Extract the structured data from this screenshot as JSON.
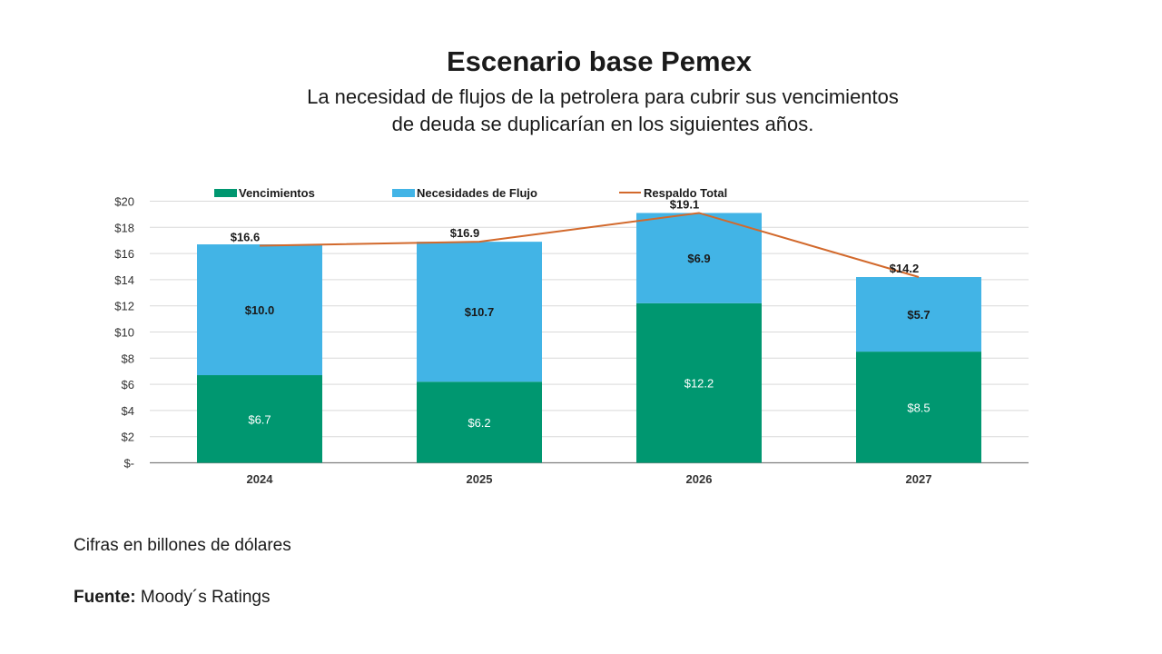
{
  "title": "Escenario base Pemex",
  "subtitle_lines": [
    "La necesidad de flujos de la petrolera para cubrir sus vencimientos",
    "de deuda se duplicarían en los siguientes años."
  ],
  "note": "Cifras en billones de dólares",
  "source": {
    "label": "Fuente:",
    "text": "Moody´s Ratings"
  },
  "colors": {
    "vencimientos": "#009770",
    "necesidades": "#42b4e6",
    "respaldo": "#d2692c",
    "grid": "#d9d9d9"
  },
  "chart_data": {
    "type": "bar",
    "stacked": true,
    "categories": [
      "2024",
      "2025",
      "2026",
      "2027"
    ],
    "series": [
      {
        "name": "Vencimientos",
        "values": [
          6.7,
          6.2,
          12.2,
          8.5
        ],
        "labels": [
          "$6.7",
          "$6.2",
          "$12.2",
          "$8.5"
        ]
      },
      {
        "name": "Necesidades de Flujo",
        "values": [
          10.0,
          10.7,
          6.9,
          5.7
        ],
        "labels": [
          "$10.0",
          "$10.7",
          "$6.9",
          "$5.7"
        ]
      }
    ],
    "line_series": {
      "name": "Respaldo Total",
      "values": [
        16.6,
        16.9,
        19.1,
        14.2
      ],
      "labels": [
        "$16.6",
        "$16.9",
        "$19.1",
        "$14.2"
      ]
    },
    "ylim": [
      0,
      20
    ],
    "yticks": [
      0,
      2,
      4,
      6,
      8,
      10,
      12,
      14,
      16,
      18,
      20
    ],
    "ytick_labels": [
      "$-",
      "$2",
      "$4",
      "$6",
      "$8",
      "$10",
      "$12",
      "$14",
      "$16",
      "$18",
      "$20"
    ],
    "grid": true,
    "legend": "top"
  }
}
